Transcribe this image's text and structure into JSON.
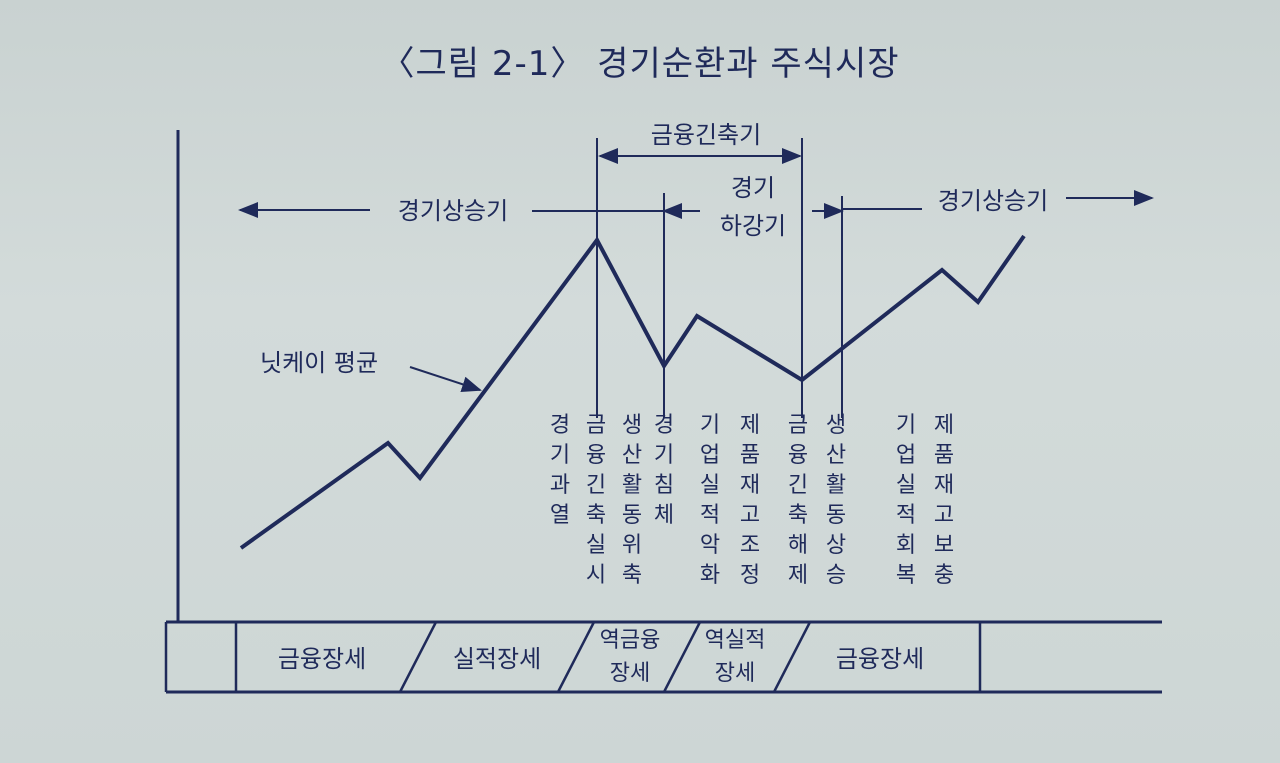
{
  "title": "〈그림 2-1〉 경기순환과 주식시장",
  "labels": {
    "tightening": "금융긴축기",
    "upswing_left": "경기상승기",
    "downswing_line1": "경기",
    "downswing_line2": "하강기",
    "upswing_right": "경기상승기",
    "nikkei": "닛케이 평균"
  },
  "vertical_notes": [
    "경기과열",
    "금융긴축실시",
    "생산활동위축",
    "경기침체",
    "기업실적악화",
    "제품재고조정",
    "금융긴축해제",
    "생산활동상승",
    "기업실적회복",
    "제품재고보충"
  ],
  "phases": [
    {
      "line1": "금융장세",
      "line2": ""
    },
    {
      "line1": "실적장세",
      "line2": ""
    },
    {
      "line1": "역금융",
      "line2": "장세"
    },
    {
      "line1": "역실적",
      "line2": "장세"
    },
    {
      "line1": "금융장세",
      "line2": ""
    }
  ],
  "colors": {
    "ink": "#1f2a5a",
    "paper": "#cdd6d5"
  }
}
